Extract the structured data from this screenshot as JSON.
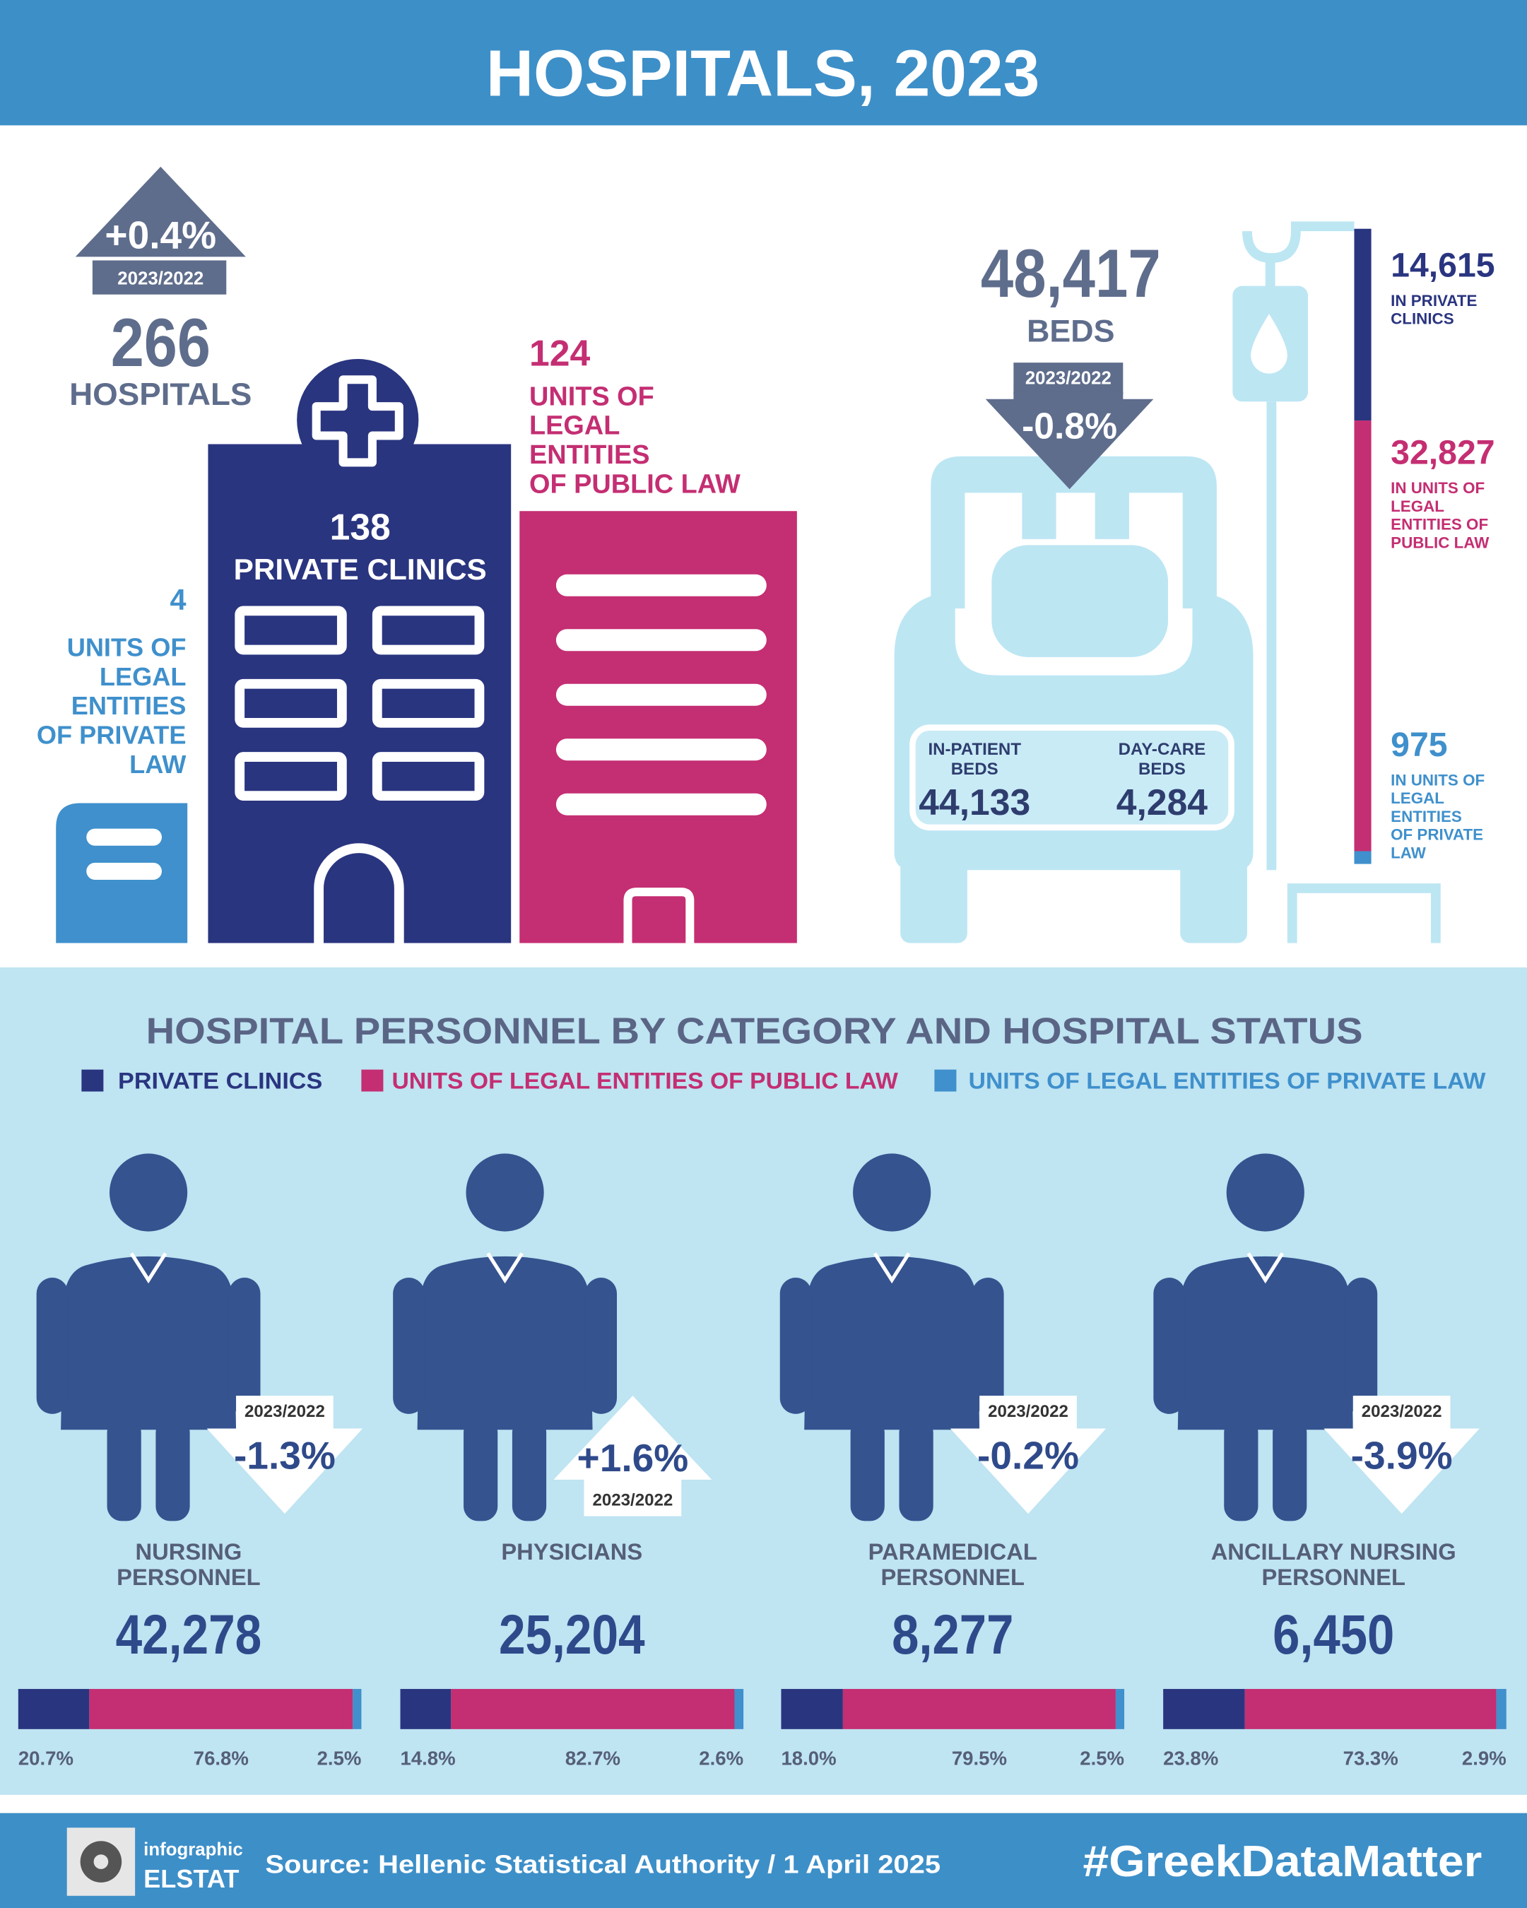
{
  "header": {
    "title": "HOSPITALS, 2023"
  },
  "hospitals": {
    "change": "+0.4%",
    "period": "2023/2022",
    "total": "266",
    "total_label": "HOSPITALS",
    "private_clinics": {
      "value": "138",
      "label": "PRIVATE CLINICS"
    },
    "public_law": {
      "value": "124",
      "label": [
        "UNITS OF",
        "LEGAL",
        "ENTITIES",
        "OF PUBLIC LAW"
      ]
    },
    "private_law": {
      "value": "4",
      "label": [
        "UNITS OF",
        "LEGAL",
        "ENTITIES",
        "OF PRIVATE",
        "LAW"
      ]
    }
  },
  "beds": {
    "total": "48,417",
    "total_label": "BEDS",
    "period": "2023/2022",
    "change": "-0.8%",
    "inpatient": {
      "label": [
        "IN-PATIENT",
        "BEDS"
      ],
      "value": "44,133"
    },
    "daycare": {
      "label": [
        "DAY-CARE",
        "BEDS"
      ],
      "value": "4,284"
    },
    "by_status": [
      {
        "value": 14615,
        "value_label": "14,615",
        "label": [
          "IN PRIVATE",
          "CLINICS"
        ],
        "color": "#2a3580"
      },
      {
        "value": 32827,
        "value_label": "32,827",
        "label": [
          "IN UNITS OF",
          "LEGAL",
          "ENTITIES OF",
          "PUBLIC LAW"
        ],
        "color": "#c42e72"
      },
      {
        "value": 975,
        "value_label": "975",
        "label": [
          "IN UNITS OF",
          "LEGAL",
          "ENTITIES",
          "OF PRIVATE",
          "LAW"
        ],
        "color": "#3f90cc"
      }
    ]
  },
  "personnel": {
    "title": "HOSPITAL PERSONNEL BY CATEGORY AND HOSPITAL STATUS",
    "legend": [
      {
        "name": "PRIVATE CLINICS",
        "color": "#2a3580"
      },
      {
        "name": "UNITS OF LEGAL ENTITIES OF PUBLIC LAW",
        "color": "#c42e72"
      },
      {
        "name": "UNITS OF LEGAL ENTITIES OF PRIVATE LAW",
        "color": "#3f90cc"
      }
    ],
    "categories": [
      {
        "name": [
          "NURSING",
          "PERSONNEL"
        ],
        "total": "42,278",
        "period": "2023/2022",
        "change": "-1.3%",
        "shares": [
          20.7,
          76.8,
          2.5
        ],
        "share_labels": [
          "20.7%",
          "76.8%",
          "2.5%"
        ]
      },
      {
        "name": [
          "PHYSICIANS"
        ],
        "total": "25,204",
        "period": "2023/2022",
        "change": "+1.6%",
        "shares": [
          14.8,
          82.7,
          2.6
        ],
        "share_labels": [
          "14.8%",
          "82.7%",
          "2.6%"
        ]
      },
      {
        "name": [
          "PARAMEDICAL",
          "PERSONNEL"
        ],
        "total": "8,277",
        "period": "2023/2022",
        "change": "-0.2%",
        "shares": [
          18.0,
          79.5,
          2.5
        ],
        "share_labels": [
          "18.0%",
          "79.5%",
          "2.5%"
        ]
      },
      {
        "name": [
          "ANCILLARY NURSING",
          "PERSONNEL"
        ],
        "total": "6,450",
        "period": "2023/2022",
        "change": "-3.9%",
        "shares": [
          23.8,
          73.3,
          2.9
        ],
        "share_labels": [
          "23.8%",
          "73.3%",
          "2.9%"
        ]
      }
    ]
  },
  "footer": {
    "brand_small": "infographic",
    "brand": "ELSTAT",
    "source": "Source: Hellenic Statistical Authority / 1 April 2025",
    "hashtag": "#GreekDataMatter"
  }
}
